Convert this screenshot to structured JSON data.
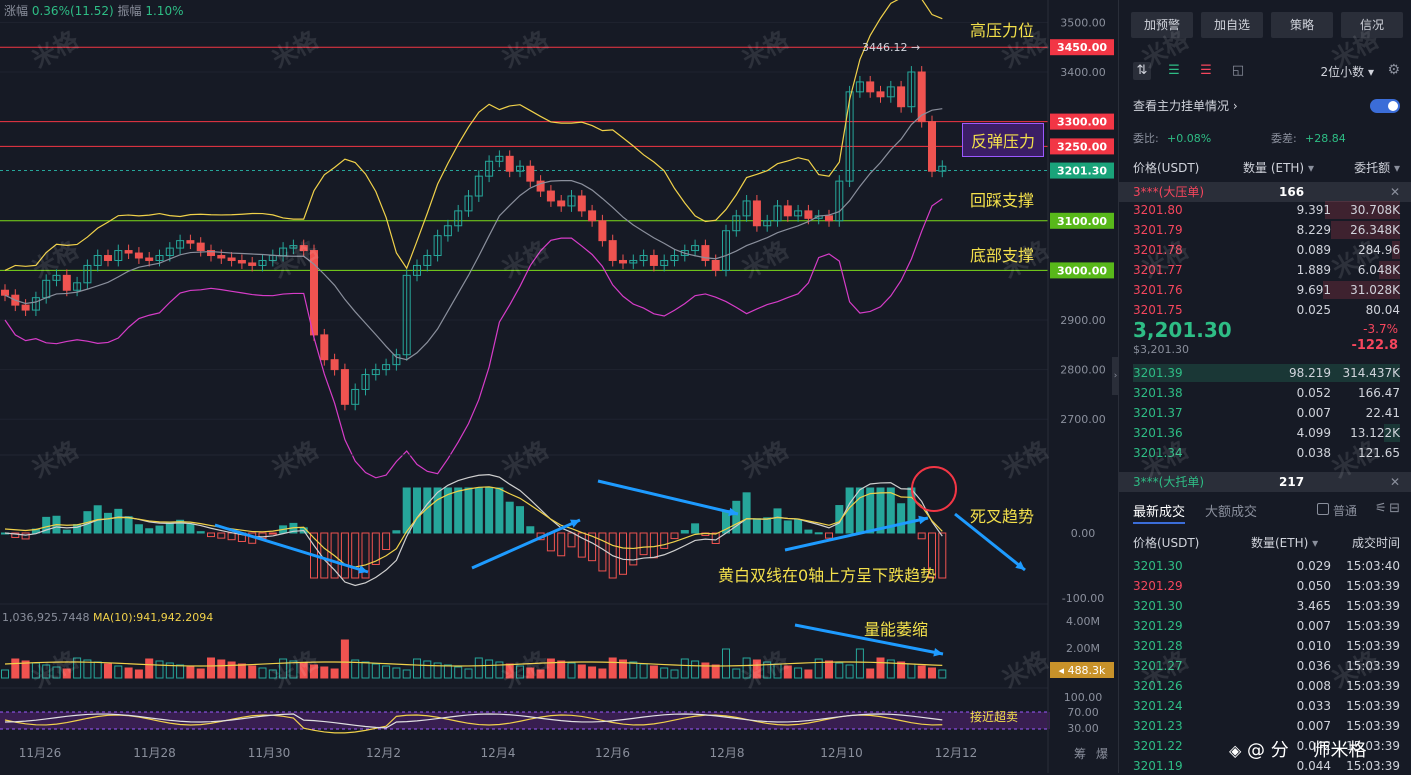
{
  "header": {
    "change_label": "涨幅",
    "change_value": "0.36%(11.52)",
    "amplitude_label": "振幅",
    "amplitude_value": "1.10%"
  },
  "chart_data": {
    "type": "candlestick",
    "symbol": "ETH/USDT",
    "x_labels": [
      "11月26",
      "11月28",
      "11月30",
      "12月2",
      "12月4",
      "12月6",
      "12月8",
      "12月10",
      "12月12"
    ],
    "y_axis": {
      "ticks": [
        "3500.00",
        "3400.00",
        "2900.00",
        "2800.00",
        "2700.00"
      ],
      "range": [
        2660,
        3520
      ]
    },
    "price_lines": [
      {
        "value": "3450.00",
        "color": "#f23645",
        "note": "高压力位"
      },
      {
        "value": "3300.00",
        "color": "#f23645",
        "note": ""
      },
      {
        "value": "3250.00",
        "color": "#f23645",
        "note": "反弹压力"
      },
      {
        "value": "3201.30",
        "color": "#26a69a",
        "note": "current"
      },
      {
        "value": "3100.00",
        "color": "#7cdb1a",
        "note": "回踩支撑"
      },
      {
        "value": "3000.00",
        "color": "#7cdb1a",
        "note": "底部支撑"
      }
    ],
    "high_marker": "3446.12",
    "macd_axis": [
      "0.00",
      "-100.00"
    ],
    "volume_axis": [
      "4.00M",
      "2.00M"
    ],
    "volume_tag": "488.3k",
    "rsi_axis": [
      "100.00",
      "70.00",
      "30.00"
    ]
  },
  "annotations": {
    "high_pressure": "高压力位",
    "rebound_pressure": "反弹压力",
    "pullback_support": "回踩支撑",
    "bottom_support": "底部支撑",
    "death_cross": "死叉趋势",
    "macd_note": "黄白双线在0轴上方呈下跌趋势",
    "volume_shrink": "量能萎缩",
    "near_oversold": "接近超卖"
  },
  "volume_info": {
    "left": "1,036,925.7448",
    "ma_label": "MA(10):",
    "ma_value": "941,942.2094"
  },
  "watermark": "米格",
  "bottom_right": {
    "icon1": "筹",
    "icon2": "爆",
    "brand_mark": "分",
    "brand_name": "师米格"
  },
  "panel": {
    "buttons": [
      "加预警",
      "加自选",
      "策略",
      "信况"
    ],
    "decimals": "2位小数",
    "main_orders": "查看主力挂单情况",
    "ratio_label": "委比:",
    "ratio_value": "+0.08%",
    "diff_label": "委差:",
    "diff_value": "+28.84",
    "headers": {
      "price": "价格(USDT)",
      "qty": "数量 (ETH)",
      "amount": "委托额"
    },
    "big_sell": {
      "label": "3***(大压单)",
      "qty": "166"
    },
    "asks": [
      {
        "price": "3201.80",
        "qty": "9.391",
        "amount": "30.708K",
        "depth": 0.28
      },
      {
        "price": "3201.79",
        "qty": "8.229",
        "amount": "26.348K",
        "depth": 0.26
      },
      {
        "price": "3201.78",
        "qty": "0.089",
        "amount": "284.96",
        "depth": 0.03
      },
      {
        "price": "3201.77",
        "qty": "1.889",
        "amount": "6.048K",
        "depth": 0.08
      },
      {
        "price": "3201.76",
        "qty": "9.691",
        "amount": "31.028K",
        "depth": 0.29
      },
      {
        "price": "3201.75",
        "qty": "0.025",
        "amount": "80.04",
        "depth": 0.0
      }
    ],
    "last_price": "3,201.30",
    "last_price_sub": "$3,201.30",
    "last_change_pct": "-3.7%",
    "last_change": "-122.8",
    "bids": [
      {
        "price": "3201.39",
        "qty": "98.219",
        "amount": "314.437K",
        "depth": 1.0
      },
      {
        "price": "3201.38",
        "qty": "0.052",
        "amount": "166.47",
        "depth": 0.0
      },
      {
        "price": "3201.37",
        "qty": "0.007",
        "amount": "22.41",
        "depth": 0.0
      },
      {
        "price": "3201.36",
        "qty": "4.099",
        "amount": "13.122K",
        "depth": 0.06
      },
      {
        "price": "3201.34",
        "qty": "0.038",
        "amount": "121.65",
        "depth": 0.0
      }
    ],
    "big_buy": {
      "label": "3***(大托单)",
      "qty": "217"
    },
    "trade_tabs": [
      "最新成交",
      "大额成交"
    ],
    "normal_label": "普通",
    "trade_headers": {
      "price": "价格(USDT)",
      "qty": "数量(ETH)",
      "time": "成交时间"
    },
    "trades": [
      {
        "price": "3201.30",
        "qty": "0.029",
        "time": "15:03:40",
        "side": "buy"
      },
      {
        "price": "3201.29",
        "qty": "0.050",
        "time": "15:03:39",
        "side": "sell"
      },
      {
        "price": "3201.30",
        "qty": "3.465",
        "time": "15:03:39",
        "side": "buy"
      },
      {
        "price": "3201.29",
        "qty": "0.007",
        "time": "15:03:39",
        "side": "buy"
      },
      {
        "price": "3201.28",
        "qty": "0.010",
        "time": "15:03:39",
        "side": "buy"
      },
      {
        "price": "3201.27",
        "qty": "0.036",
        "time": "15:03:39",
        "side": "buy"
      },
      {
        "price": "3201.26",
        "qty": "0.008",
        "time": "15:03:39",
        "side": "buy"
      },
      {
        "price": "3201.24",
        "qty": "0.033",
        "time": "15:03:39",
        "side": "buy"
      },
      {
        "price": "3201.23",
        "qty": "0.007",
        "time": "15:03:39",
        "side": "buy"
      },
      {
        "price": "3201.22",
        "qty": "0.042",
        "time": "15:03:39",
        "side": "buy"
      },
      {
        "price": "3201.19",
        "qty": "0.044",
        "time": "15:03:39",
        "side": "buy"
      }
    ]
  }
}
